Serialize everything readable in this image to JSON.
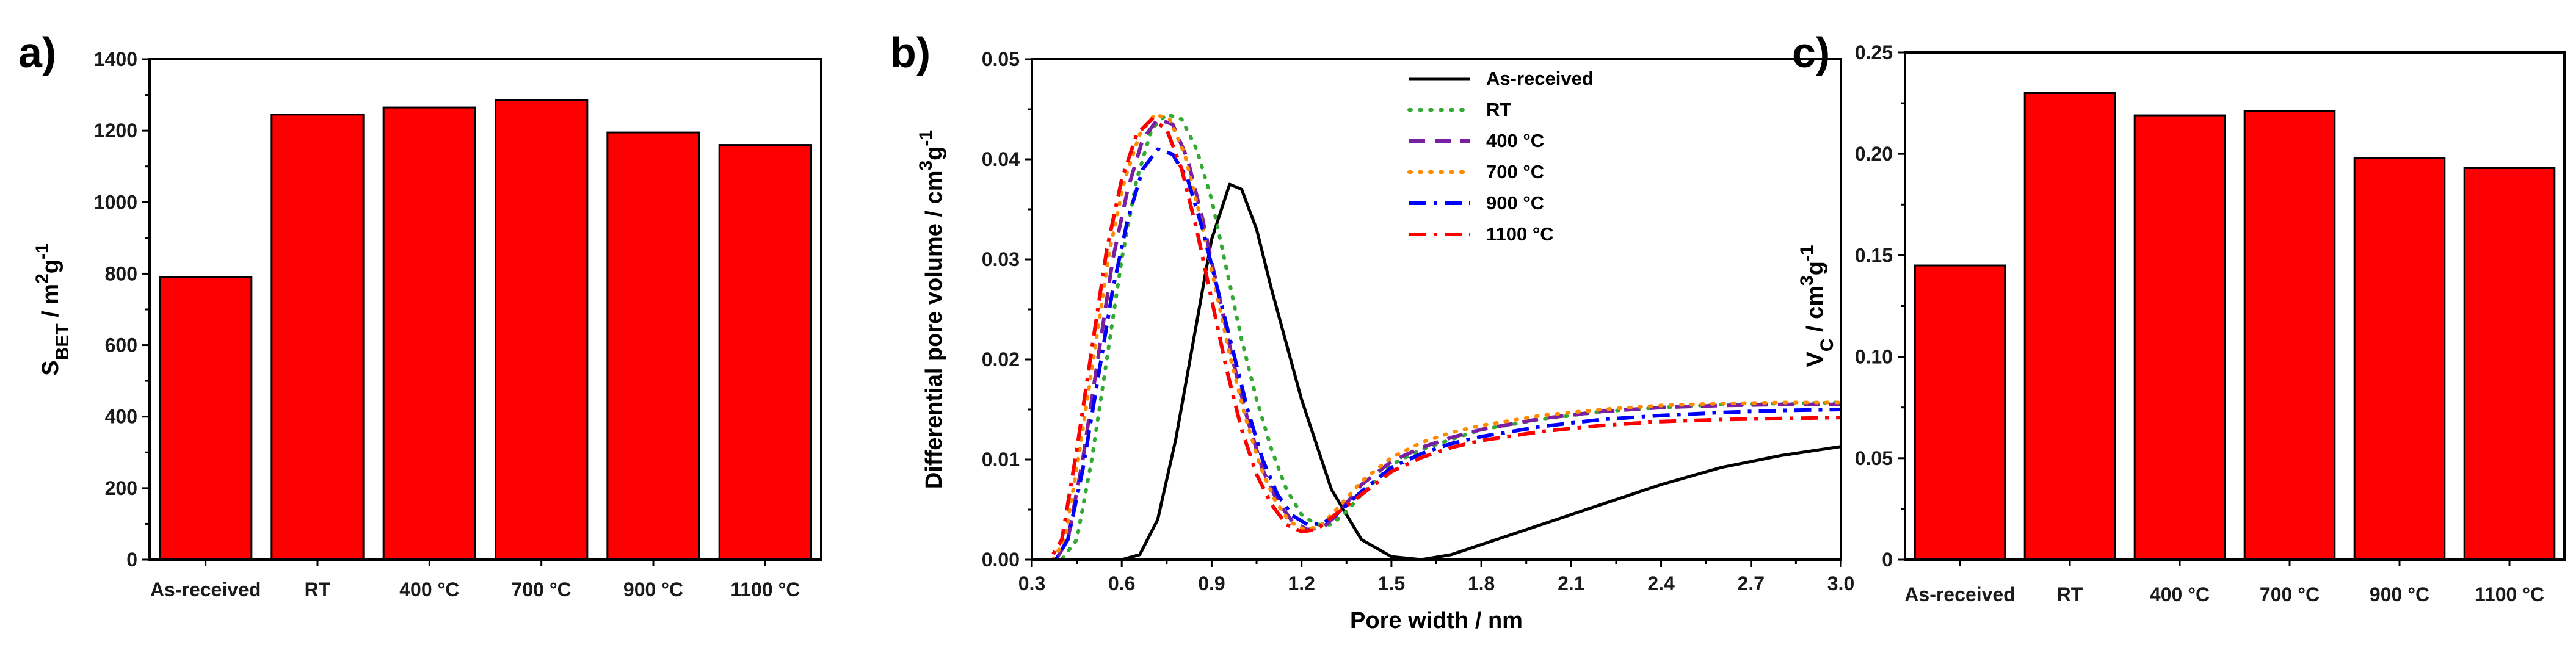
{
  "chart_data": [
    {
      "type": "bar",
      "panel_label": "a)",
      "categories": [
        "As-received",
        "RT",
        "400 °C",
        "700 °C",
        "900 °C",
        "1100 °C"
      ],
      "values": [
        790,
        1245,
        1265,
        1285,
        1195,
        1160
      ],
      "ylabel": "S",
      "ylabel_sub": "BET",
      "ylabel_unit": " / m",
      "ylabel_sup1": "2",
      "ylabel_g": "g",
      "ylabel_sup2": "-1",
      "ylim": [
        0,
        1400
      ],
      "yticks": [
        "0",
        "200",
        "400",
        "600",
        "800",
        "1000",
        "1200",
        "1400"
      ],
      "bar_color": "#ff0000"
    },
    {
      "type": "line",
      "panel_label": "b)",
      "xlabel": "Pore width / nm",
      "ylabel": "Differential pore volume / cm",
      "ylabel_sup1": "3",
      "ylabel_g": "g",
      "ylabel_sup2": "-1",
      "xlim": [
        0.3,
        3.0
      ],
      "ylim": [
        0,
        0.05
      ],
      "xticks": [
        "0.3",
        "0.6",
        "0.9",
        "1.2",
        "1.5",
        "1.8",
        "2.1",
        "2.4",
        "2.7",
        "3.0"
      ],
      "yticks": [
        "0.00",
        "0.01",
        "0.02",
        "0.03",
        "0.04",
        "0.05"
      ],
      "series": [
        {
          "name": "As-received",
          "color": "#000000",
          "style": "solid",
          "x": [
            0.3,
            0.6,
            0.66,
            0.72,
            0.78,
            0.84,
            0.9,
            0.96,
            1.0,
            1.05,
            1.1,
            1.2,
            1.3,
            1.4,
            1.5,
            1.6,
            1.7,
            1.8,
            2.0,
            2.2,
            2.4,
            2.6,
            2.8,
            3.0
          ],
          "y": [
            0,
            0,
            0.0005,
            0.004,
            0.012,
            0.022,
            0.032,
            0.0375,
            0.037,
            0.033,
            0.027,
            0.016,
            0.007,
            0.002,
            0.0003,
            0,
            0.0005,
            0.0015,
            0.0035,
            0.0055,
            0.0075,
            0.0092,
            0.0104,
            0.0113
          ]
        },
        {
          "name": "RT",
          "color": "#33aa33",
          "style": "dotted",
          "x": [
            0.3,
            0.4,
            0.45,
            0.5,
            0.55,
            0.6,
            0.65,
            0.7,
            0.75,
            0.8,
            0.85,
            0.9,
            0.95,
            1.0,
            1.05,
            1.1,
            1.15,
            1.2,
            1.25,
            1.3,
            1.35,
            1.4,
            1.5,
            1.6,
            1.7,
            1.8,
            2.0,
            2.2,
            2.4,
            2.6,
            2.8,
            3.0
          ],
          "y": [
            0,
            0,
            0.002,
            0.01,
            0.02,
            0.03,
            0.038,
            0.043,
            0.0445,
            0.044,
            0.041,
            0.036,
            0.029,
            0.022,
            0.016,
            0.011,
            0.007,
            0.0045,
            0.0035,
            0.0035,
            0.0048,
            0.0065,
            0.0095,
            0.011,
            0.012,
            0.013,
            0.014,
            0.0148,
            0.0152,
            0.0155,
            0.0156,
            0.0157
          ]
        },
        {
          "name": "400 °C",
          "color": "#7a1fa2",
          "style": "dashed",
          "x": [
            0.3,
            0.38,
            0.42,
            0.47,
            0.52,
            0.57,
            0.62,
            0.67,
            0.72,
            0.77,
            0.82,
            0.87,
            0.92,
            0.97,
            1.02,
            1.07,
            1.12,
            1.17,
            1.22,
            1.27,
            1.32,
            1.4,
            1.5,
            1.6,
            1.7,
            1.8,
            2.0,
            2.2,
            2.4,
            2.6,
            2.8,
            3.0
          ],
          "y": [
            0,
            0,
            0.002,
            0.01,
            0.02,
            0.03,
            0.037,
            0.042,
            0.044,
            0.0435,
            0.04,
            0.034,
            0.027,
            0.02,
            0.014,
            0.009,
            0.0058,
            0.0038,
            0.003,
            0.0032,
            0.0045,
            0.0075,
            0.0098,
            0.0112,
            0.0122,
            0.013,
            0.0141,
            0.0148,
            0.0152,
            0.0154,
            0.0155,
            0.0155
          ]
        },
        {
          "name": "700 °C",
          "color": "#ff8c00",
          "style": "dotted",
          "x": [
            0.3,
            0.37,
            0.41,
            0.46,
            0.51,
            0.56,
            0.61,
            0.66,
            0.71,
            0.76,
            0.81,
            0.86,
            0.91,
            0.96,
            1.01,
            1.06,
            1.11,
            1.16,
            1.21,
            1.26,
            1.31,
            1.4,
            1.5,
            1.6,
            1.7,
            1.8,
            2.0,
            2.2,
            2.4,
            2.6,
            2.8,
            3.0
          ],
          "y": [
            0,
            0,
            0.002,
            0.011,
            0.021,
            0.031,
            0.038,
            0.0425,
            0.0445,
            0.044,
            0.0405,
            0.0345,
            0.0275,
            0.0205,
            0.0145,
            0.0095,
            0.006,
            0.0038,
            0.003,
            0.0033,
            0.0048,
            0.0078,
            0.0102,
            0.0117,
            0.0127,
            0.0134,
            0.0144,
            0.015,
            0.0154,
            0.0156,
            0.0157,
            0.0157
          ]
        },
        {
          "name": "900 °C",
          "color": "#0000ff",
          "style": "dashdot",
          "x": [
            0.3,
            0.38,
            0.42,
            0.47,
            0.52,
            0.57,
            0.62,
            0.67,
            0.72,
            0.77,
            0.82,
            0.87,
            0.92,
            0.97,
            1.02,
            1.07,
            1.12,
            1.17,
            1.22,
            1.27,
            1.32,
            1.4,
            1.5,
            1.6,
            1.7,
            1.8,
            2.0,
            2.2,
            2.4,
            2.6,
            2.8,
            3.0
          ],
          "y": [
            0,
            0,
            0.002,
            0.009,
            0.018,
            0.027,
            0.034,
            0.039,
            0.041,
            0.0405,
            0.038,
            0.033,
            0.027,
            0.021,
            0.015,
            0.01,
            0.0065,
            0.0044,
            0.0035,
            0.0036,
            0.0046,
            0.0068,
            0.0092,
            0.0106,
            0.0116,
            0.0123,
            0.0133,
            0.014,
            0.0144,
            0.0147,
            0.0149,
            0.015
          ]
        },
        {
          "name": "1100 °C",
          "color": "#ff0000",
          "style": "dashdot",
          "x": [
            0.3,
            0.36,
            0.4,
            0.45,
            0.5,
            0.55,
            0.6,
            0.65,
            0.7,
            0.75,
            0.8,
            0.85,
            0.9,
            0.95,
            1.0,
            1.05,
            1.1,
            1.15,
            1.2,
            1.25,
            1.3,
            1.4,
            1.5,
            1.6,
            1.7,
            1.8,
            2.0,
            2.2,
            2.4,
            2.6,
            2.8,
            3.0
          ],
          "y": [
            0,
            0,
            0.002,
            0.011,
            0.021,
            0.031,
            0.038,
            0.0425,
            0.044,
            0.043,
            0.039,
            0.033,
            0.026,
            0.019,
            0.013,
            0.0085,
            0.0055,
            0.0035,
            0.0028,
            0.003,
            0.0042,
            0.0065,
            0.0088,
            0.0102,
            0.0112,
            0.0119,
            0.0128,
            0.0134,
            0.0138,
            0.014,
            0.0141,
            0.0142
          ]
        }
      ],
      "legend_position": "top-right"
    },
    {
      "type": "bar",
      "panel_label": "c)",
      "categories": [
        "As-received",
        "RT",
        "400 °C",
        "700 °C",
        "900 °C",
        "1100 °C"
      ],
      "values": [
        0.145,
        0.23,
        0.219,
        0.221,
        0.198,
        0.193
      ],
      "ylabel": "V",
      "ylabel_sub": "C",
      "ylabel_unit": " / cm",
      "ylabel_sup1": "3",
      "ylabel_g": "g",
      "ylabel_sup2": "-1",
      "ylim": [
        0,
        0.25
      ],
      "yticks": [
        "0",
        "0.05",
        "0.10",
        "0.15",
        "0.20",
        "0.25"
      ],
      "bar_color": "#ff0000"
    }
  ]
}
